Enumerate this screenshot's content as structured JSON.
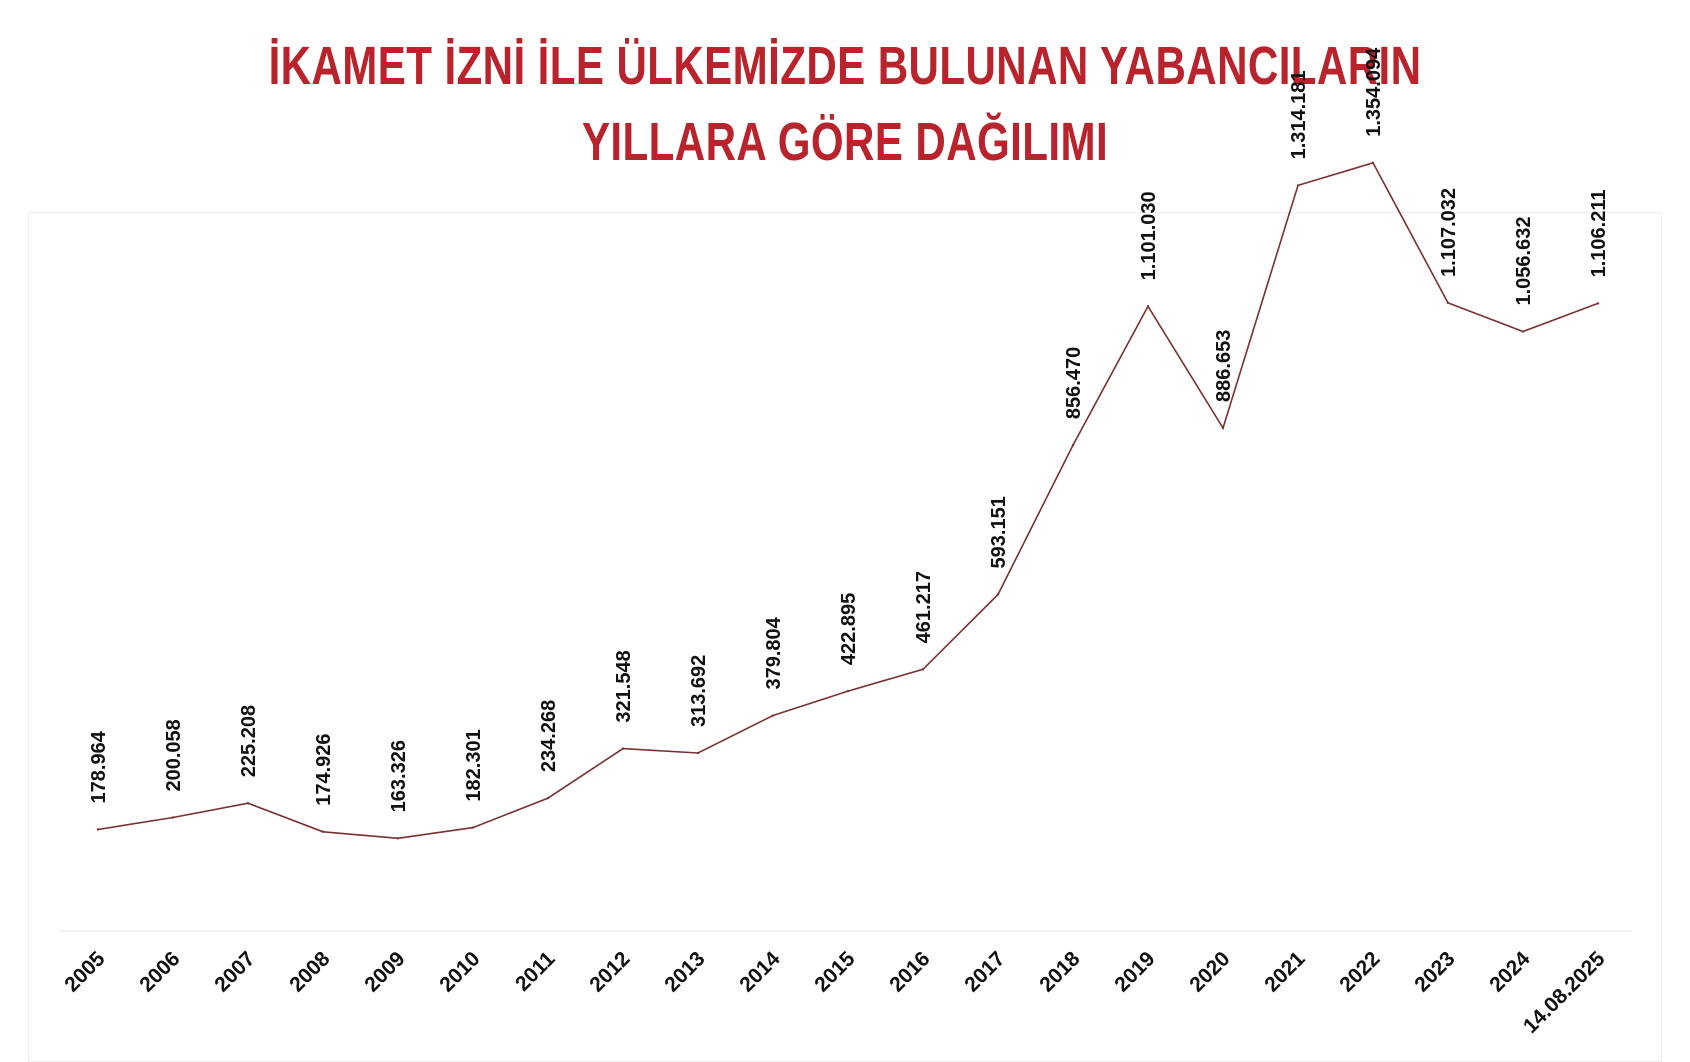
{
  "title": {
    "line1": "İKAMET İZNİ İLE ÜLKEMİZDE BULUNAN YABANCILARIN",
    "line2": "YILLARA GÖRE DAĞILIMI"
  },
  "colors": {
    "title": "#b8232c",
    "line": "#7a3030",
    "axis": "#e6e6e6"
  },
  "chart_data": {
    "type": "line",
    "title": "İKAMET İZNİ İLE ÜLKEMİZDE BULUNAN YABANCILARIN YILLARA GÖRE DAĞILIMI",
    "xlabel": "",
    "ylabel": "",
    "ylim": [
      0,
      1500000
    ],
    "grid": false,
    "legend": "none",
    "categories": [
      "2005",
      "2006",
      "2007",
      "2008",
      "2009",
      "2010",
      "2011",
      "2012",
      "2013",
      "2014",
      "2015",
      "2016",
      "2017",
      "2018",
      "2019",
      "2020",
      "2021",
      "2022",
      "2023",
      "2024",
      "14.08.2025"
    ],
    "values": [
      178964,
      200058,
      225208,
      174926,
      163326,
      182301,
      234268,
      321548,
      313692,
      379804,
      422895,
      461217,
      593151,
      856470,
      1101030,
      886653,
      1314181,
      1354094,
      1107032,
      1056632,
      1106211
    ],
    "data_labels": [
      "178.964",
      "200.058",
      "225.208",
      "174.926",
      "163.326",
      "182.301",
      "234.268",
      "321.548",
      "313.692",
      "379.804",
      "422.895",
      "461.217",
      "593.151",
      "856.470",
      "1.101.030",
      "886.653",
      "1.314.181",
      "1.354.094",
      "1.107.032",
      "1.056.632",
      "1.106.211"
    ]
  }
}
